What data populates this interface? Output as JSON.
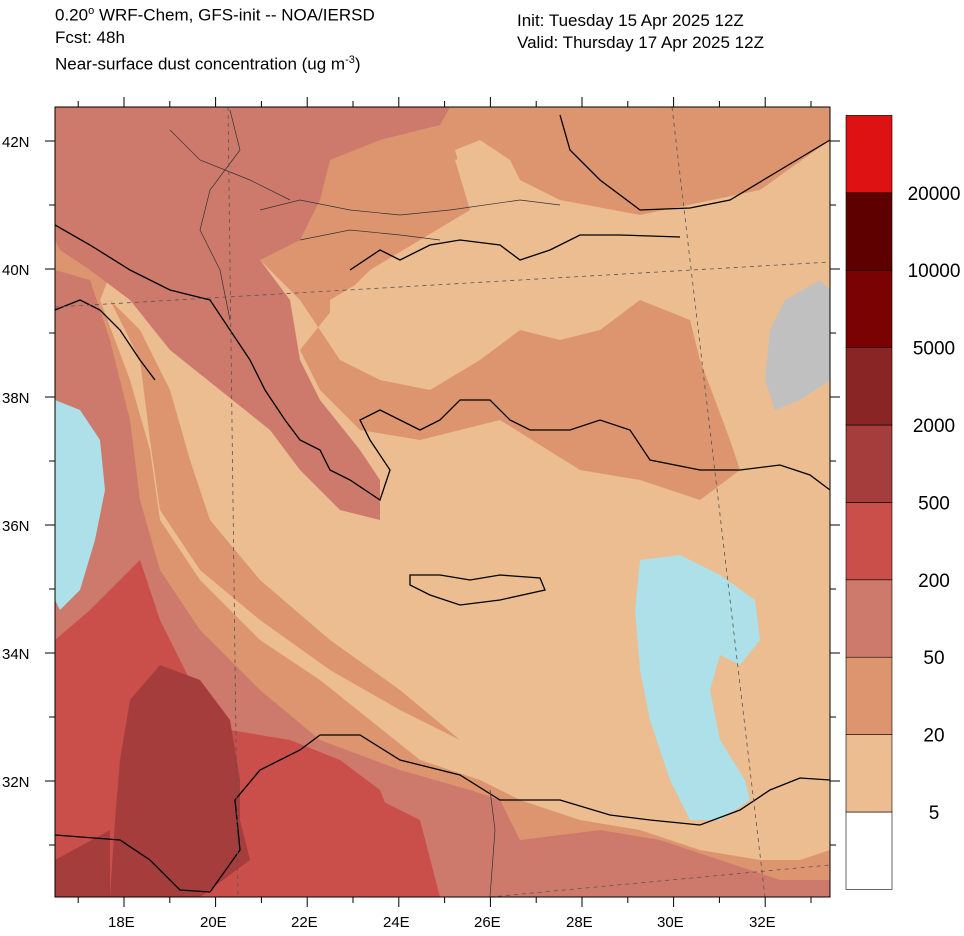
{
  "header": {
    "line1_prefix": "0.20",
    "line1_deg": "o",
    "line1_suffix": " WRF-Chem, GFS-init -- NOA/IERSD",
    "line2": "Fcst: 48h",
    "line3_main": "Near-surface dust concentration (ug m",
    "line3_sup": "-3",
    "line3_end": ")",
    "init": "Init: Tuesday 15 Apr 2025  12Z",
    "valid": "Valid: Thursday 17 Apr 2025  12Z"
  },
  "axes": {
    "lat_labels": [
      "42N",
      "40N",
      "38N",
      "36N",
      "34N",
      "32N"
    ],
    "lon_labels": [
      "18E",
      "20E",
      "22E",
      "24E",
      "26E",
      "28E",
      "30E",
      "32E"
    ]
  },
  "colorbar": {
    "levels": [
      "5",
      "20",
      "50",
      "200",
      "500",
      "2000",
      "5000",
      "10000",
      "20000"
    ],
    "colors": [
      "#ffffff",
      "#ebbd91",
      "#dd9570",
      "#cd7a6c",
      "#ca4f4b",
      "#a53d3d",
      "#8a2525",
      "#7a0202",
      "#5e0000",
      "#de1212"
    ]
  },
  "colors": {
    "missing": "#c0c0c0",
    "clean": "#ade0e8"
  }
}
